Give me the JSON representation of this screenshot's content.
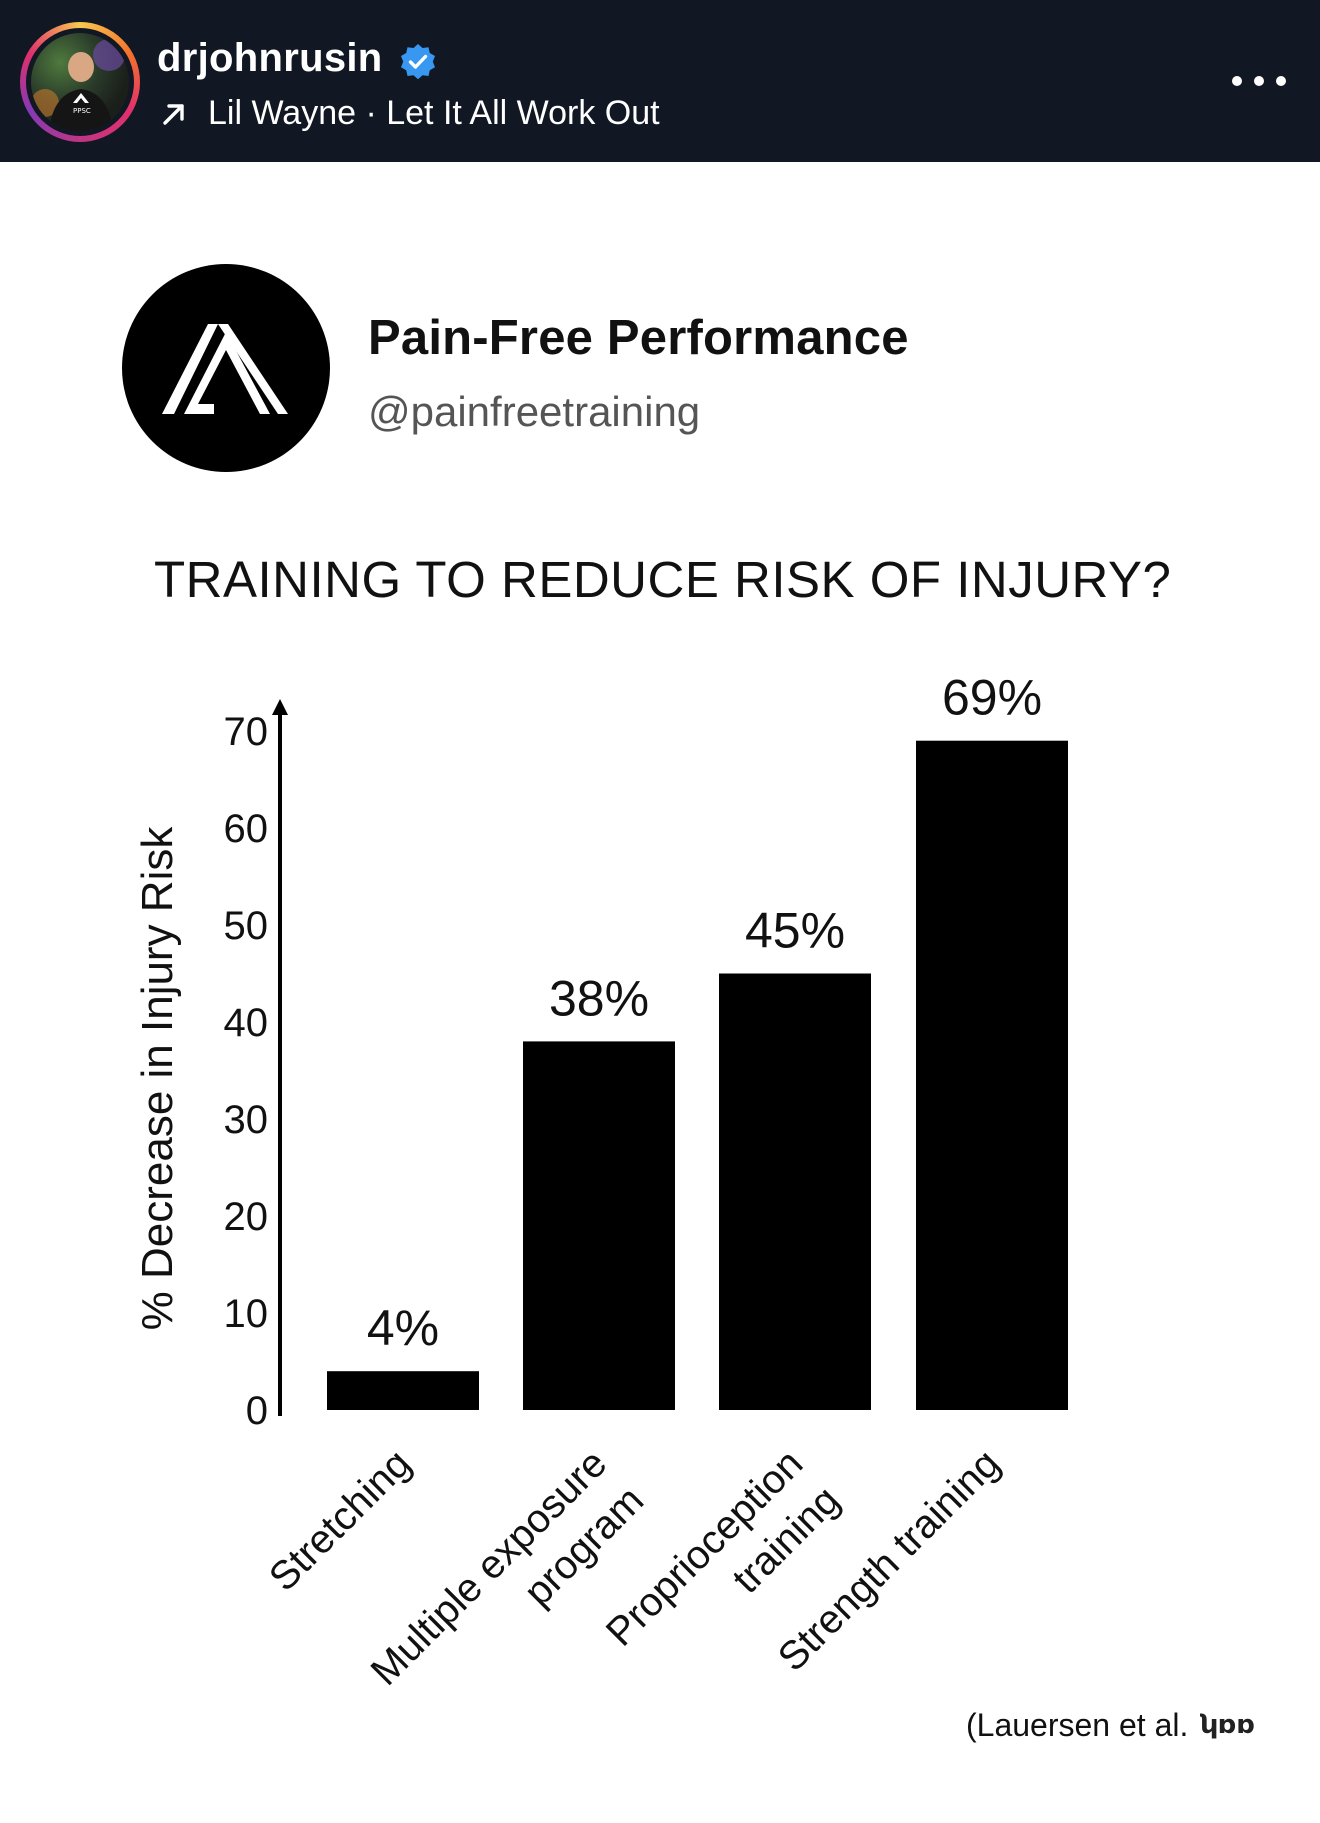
{
  "header": {
    "username": "drjohnrusin",
    "verified": true,
    "music": "Lil Wayne · Let It All Work Out",
    "icons": {
      "avatar": "avatar",
      "verified": "verified-badge-icon",
      "music": "trending-arrow-icon",
      "more": "more-options-icon"
    }
  },
  "post": {
    "brand": {
      "name": "Pain-Free Performance",
      "handle": "@painfreetraining"
    },
    "citation": "(Lauersen et al."
  },
  "colors": {
    "header_bg": "#111723",
    "bars": "#000000",
    "verified": "#3897f0"
  },
  "chart_data": {
    "type": "bar",
    "title": "TRAINING TO REDUCE RISK OF INJURY?",
    "ylabel": "% Decrease in Injury Risk",
    "xlabel": "",
    "ylim": [
      0,
      70
    ],
    "yticks": [
      "0",
      "10",
      "20",
      "30",
      "40",
      "50",
      "60",
      "70"
    ],
    "categories": [
      [
        "Stretching"
      ],
      [
        "Multiple exposure",
        "program"
      ],
      [
        "Proprioception",
        "training"
      ],
      [
        "Strength training"
      ]
    ],
    "values": [
      4,
      38,
      45,
      69
    ],
    "data_labels": [
      "4%",
      "38%",
      "45%",
      "69%"
    ],
    "grid": false
  }
}
